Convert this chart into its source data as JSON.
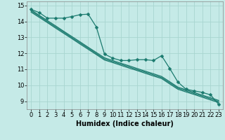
{
  "xlabel": "Humidex (Indice chaleur)",
  "xlim": [
    -0.5,
    23.5
  ],
  "ylim": [
    8.5,
    15.25
  ],
  "yticks": [
    9,
    10,
    11,
    12,
    13,
    14,
    15
  ],
  "xticks": [
    0,
    1,
    2,
    3,
    4,
    5,
    6,
    7,
    8,
    9,
    10,
    11,
    12,
    13,
    14,
    15,
    16,
    17,
    18,
    19,
    20,
    21,
    22,
    23
  ],
  "bg_color": "#c5eae7",
  "grid_color": "#a8d5d0",
  "line_color": "#1a7a6e",
  "noisy_y": [
    14.75,
    14.55,
    14.2,
    14.2,
    14.2,
    14.3,
    14.42,
    14.45,
    13.65,
    11.95,
    11.7,
    11.55,
    11.55,
    11.6,
    11.6,
    11.55,
    11.85,
    11.05,
    10.2,
    9.75,
    9.65,
    9.55,
    9.4,
    8.8
  ],
  "smooth1_y": [
    14.72,
    14.38,
    14.05,
    13.72,
    13.38,
    13.05,
    12.72,
    12.38,
    12.05,
    11.72,
    11.55,
    11.38,
    11.22,
    11.05,
    10.88,
    10.72,
    10.55,
    10.22,
    9.88,
    9.72,
    9.55,
    9.38,
    9.22,
    9.05
  ],
  "smooth2_y": [
    14.65,
    14.32,
    13.98,
    13.65,
    13.32,
    12.98,
    12.65,
    12.32,
    11.98,
    11.65,
    11.48,
    11.32,
    11.15,
    10.98,
    10.82,
    10.65,
    10.48,
    10.15,
    9.82,
    9.65,
    9.48,
    9.32,
    9.15,
    8.98
  ],
  "smooth3_y": [
    14.58,
    14.25,
    13.92,
    13.58,
    13.25,
    12.92,
    12.58,
    12.25,
    11.92,
    11.58,
    11.42,
    11.25,
    11.08,
    10.92,
    10.75,
    10.58,
    10.42,
    10.08,
    9.75,
    9.58,
    9.42,
    9.25,
    9.08,
    8.92
  ],
  "marker": "D",
  "marker_size": 2.5,
  "linewidth": 0.9,
  "tick_fontsize": 6,
  "label_fontsize": 7
}
